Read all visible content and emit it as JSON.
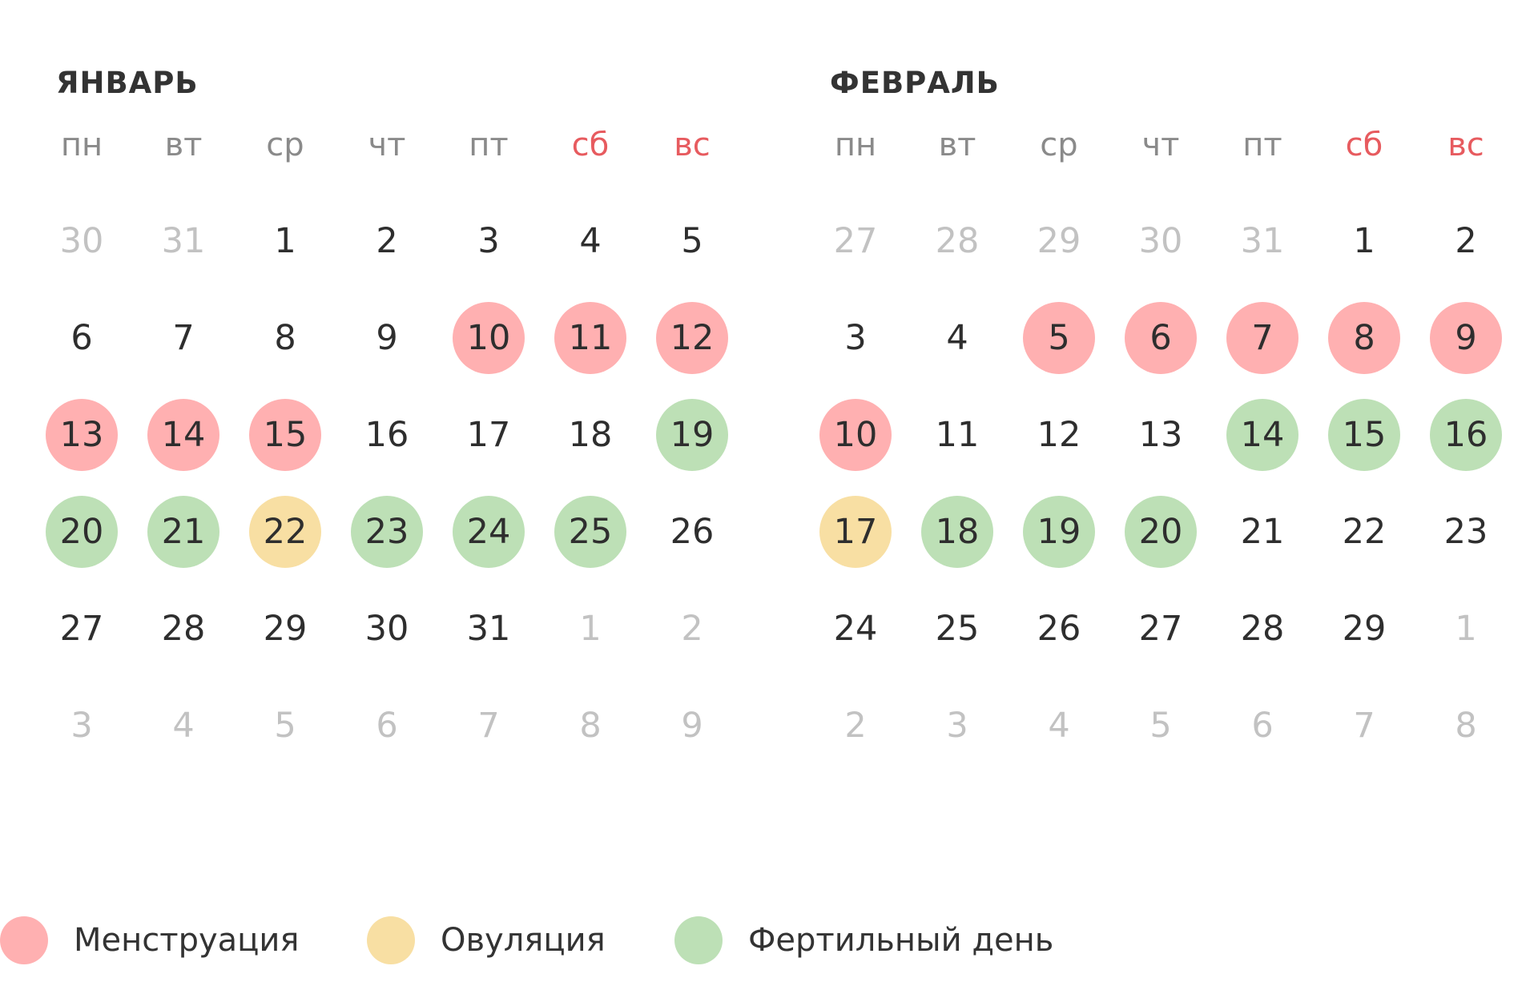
{
  "colors": {
    "menstruation": "#ffb0b1",
    "ovulation": "#f8dfa3",
    "fertile": "#bde0b6"
  },
  "weekdays": [
    {
      "label": "пн",
      "weekend": false
    },
    {
      "label": "вт",
      "weekend": false
    },
    {
      "label": "ср",
      "weekend": false
    },
    {
      "label": "чт",
      "weekend": false
    },
    {
      "label": "пт",
      "weekend": false
    },
    {
      "label": "сб",
      "weekend": true
    },
    {
      "label": "вс",
      "weekend": true
    }
  ],
  "months": [
    {
      "title": "ЯНВАРЬ",
      "weeks": [
        [
          {
            "d": "30",
            "cur": false
          },
          {
            "d": "31",
            "cur": false
          },
          {
            "d": "1",
            "cur": true
          },
          {
            "d": "2",
            "cur": true
          },
          {
            "d": "3",
            "cur": true
          },
          {
            "d": "4",
            "cur": true
          },
          {
            "d": "5",
            "cur": true
          }
        ],
        [
          {
            "d": "6",
            "cur": true
          },
          {
            "d": "7",
            "cur": true
          },
          {
            "d": "8",
            "cur": true
          },
          {
            "d": "9",
            "cur": true
          },
          {
            "d": "10",
            "cur": true,
            "mark": "menstruation"
          },
          {
            "d": "11",
            "cur": true,
            "mark": "menstruation"
          },
          {
            "d": "12",
            "cur": true,
            "mark": "menstruation"
          }
        ],
        [
          {
            "d": "13",
            "cur": true,
            "mark": "menstruation"
          },
          {
            "d": "14",
            "cur": true,
            "mark": "menstruation"
          },
          {
            "d": "15",
            "cur": true,
            "mark": "menstruation"
          },
          {
            "d": "16",
            "cur": true
          },
          {
            "d": "17",
            "cur": true
          },
          {
            "d": "18",
            "cur": true
          },
          {
            "d": "19",
            "cur": true,
            "mark": "fertile"
          }
        ],
        [
          {
            "d": "20",
            "cur": true,
            "mark": "fertile"
          },
          {
            "d": "21",
            "cur": true,
            "mark": "fertile"
          },
          {
            "d": "22",
            "cur": true,
            "mark": "ovulation"
          },
          {
            "d": "23",
            "cur": true,
            "mark": "fertile"
          },
          {
            "d": "24",
            "cur": true,
            "mark": "fertile"
          },
          {
            "d": "25",
            "cur": true,
            "mark": "fertile"
          },
          {
            "d": "26",
            "cur": true
          }
        ],
        [
          {
            "d": "27",
            "cur": true
          },
          {
            "d": "28",
            "cur": true
          },
          {
            "d": "29",
            "cur": true
          },
          {
            "d": "30",
            "cur": true
          },
          {
            "d": "31",
            "cur": true
          },
          {
            "d": "1",
            "cur": false
          },
          {
            "d": "2",
            "cur": false
          }
        ],
        [
          {
            "d": "3",
            "cur": false
          },
          {
            "d": "4",
            "cur": false
          },
          {
            "d": "5",
            "cur": false
          },
          {
            "d": "6",
            "cur": false
          },
          {
            "d": "7",
            "cur": false
          },
          {
            "d": "8",
            "cur": false
          },
          {
            "d": "9",
            "cur": false
          }
        ]
      ]
    },
    {
      "title": "ФЕВРАЛЬ",
      "weeks": [
        [
          {
            "d": "27",
            "cur": false
          },
          {
            "d": "28",
            "cur": false
          },
          {
            "d": "29",
            "cur": false
          },
          {
            "d": "30",
            "cur": false
          },
          {
            "d": "31",
            "cur": false
          },
          {
            "d": "1",
            "cur": true
          },
          {
            "d": "2",
            "cur": true
          }
        ],
        [
          {
            "d": "3",
            "cur": true
          },
          {
            "d": "4",
            "cur": true
          },
          {
            "d": "5",
            "cur": true,
            "mark": "menstruation"
          },
          {
            "d": "6",
            "cur": true,
            "mark": "menstruation"
          },
          {
            "d": "7",
            "cur": true,
            "mark": "menstruation"
          },
          {
            "d": "8",
            "cur": true,
            "mark": "menstruation"
          },
          {
            "d": "9",
            "cur": true,
            "mark": "menstruation"
          }
        ],
        [
          {
            "d": "10",
            "cur": true,
            "mark": "menstruation"
          },
          {
            "d": "11",
            "cur": true
          },
          {
            "d": "12",
            "cur": true
          },
          {
            "d": "13",
            "cur": true
          },
          {
            "d": "14",
            "cur": true,
            "mark": "fertile"
          },
          {
            "d": "15",
            "cur": true,
            "mark": "fertile"
          },
          {
            "d": "16",
            "cur": true,
            "mark": "fertile"
          }
        ],
        [
          {
            "d": "17",
            "cur": true,
            "mark": "ovulation"
          },
          {
            "d": "18",
            "cur": true,
            "mark": "fertile"
          },
          {
            "d": "19",
            "cur": true,
            "mark": "fertile"
          },
          {
            "d": "20",
            "cur": true,
            "mark": "fertile"
          },
          {
            "d": "21",
            "cur": true
          },
          {
            "d": "22",
            "cur": true
          },
          {
            "d": "23",
            "cur": true
          }
        ],
        [
          {
            "d": "24",
            "cur": true
          },
          {
            "d": "25",
            "cur": true
          },
          {
            "d": "26",
            "cur": true
          },
          {
            "d": "27",
            "cur": true
          },
          {
            "d": "28",
            "cur": true
          },
          {
            "d": "29",
            "cur": true
          },
          {
            "d": "1",
            "cur": false
          }
        ],
        [
          {
            "d": "2",
            "cur": false
          },
          {
            "d": "3",
            "cur": false
          },
          {
            "d": "4",
            "cur": false
          },
          {
            "d": "5",
            "cur": false
          },
          {
            "d": "6",
            "cur": false
          },
          {
            "d": "7",
            "cur": false
          },
          {
            "d": "8",
            "cur": false
          }
        ]
      ]
    }
  ],
  "legend": [
    {
      "key": "menstruation",
      "label": "Менструация"
    },
    {
      "key": "ovulation",
      "label": "Овуляция"
    },
    {
      "key": "fertile",
      "label": "Фертильный день"
    }
  ]
}
